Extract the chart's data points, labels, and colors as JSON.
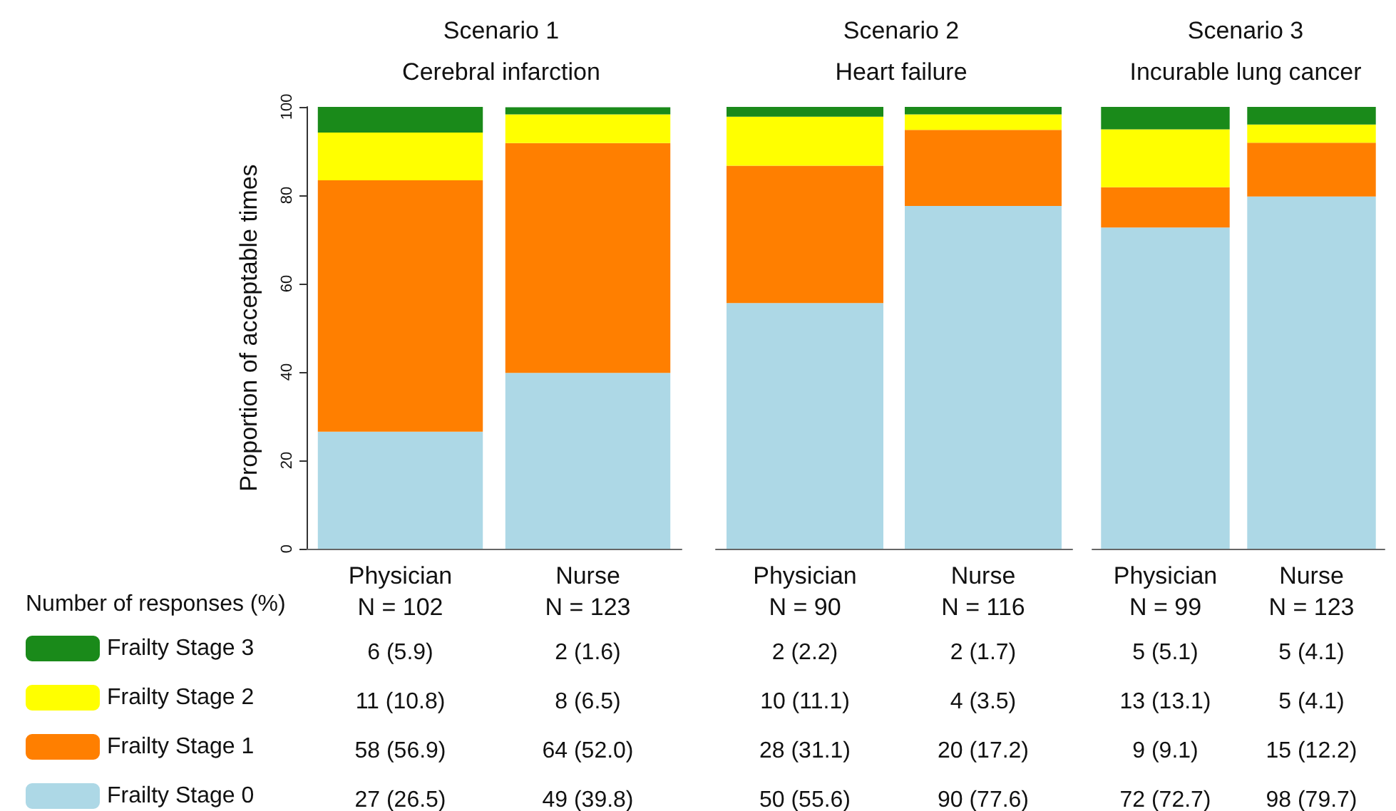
{
  "chart_data": [
    {
      "type": "bar",
      "title": "Scenario 1",
      "subtitle": "Cerebral infarction",
      "ylabel": "Proportion of acceptable times",
      "categories": [
        "Physician\nN = 102",
        "Nurse\nN = 123"
      ],
      "stacked": true,
      "ylim": [
        0,
        100
      ],
      "yticks": [
        0,
        20,
        40,
        60,
        80,
        100
      ],
      "grid": false,
      "legend": "bottom left",
      "annotations": [
        "Number of responses (%)"
      ],
      "series": [
        {
          "name": "Frailty Stage 0",
          "color": "#add8e6",
          "values": [
            26.5,
            39.8
          ],
          "value_labels": [
            "27 (26.5)",
            "49 (39.8)"
          ]
        },
        {
          "name": "Frailty Stage 1",
          "color": "#ff7f00",
          "values": [
            56.9,
            52.0
          ],
          "value_labels": [
            "58 (56.9)",
            "64 (52.0)"
          ]
        },
        {
          "name": "Frailty Stage 2",
          "color": "#ffff00",
          "values": [
            10.8,
            6.5
          ],
          "value_labels": [
            "11 (10.8)",
            "8 (6.5)"
          ]
        },
        {
          "name": "Frailty Stage 3",
          "color": "#1a8a1a",
          "values": [
            5.9,
            1.6
          ],
          "value_labels": [
            "6 (5.9)",
            "2 (1.6)"
          ]
        }
      ]
    },
    {
      "type": "bar",
      "title": "Scenario 2",
      "subtitle": "Heart failure",
      "categories": [
        "Physician\nN = 90",
        "Nurse\nN = 116"
      ],
      "stacked": true,
      "ylim": [
        0,
        100
      ],
      "tick_labels": "x",
      "grid": false,
      "series": [
        {
          "color": "#add8e6",
          "values": [
            55.6,
            77.6
          ],
          "value_labels": [
            "50 (55.6)",
            "90 (77.6)"
          ]
        },
        {
          "color": "#ff7f00",
          "values": [
            31.1,
            17.2
          ],
          "value_labels": [
            "28 (31.1)",
            "20 (17.2)"
          ]
        },
        {
          "color": "#ffff00",
          "values": [
            11.1,
            3.5
          ],
          "value_labels": [
            "10 (11.1)",
            "4 (3.5)"
          ]
        },
        {
          "color": "#1a8a1a",
          "values": [
            2.2,
            1.7
          ],
          "value_labels": [
            "2 (2.2)",
            "2 (1.7)"
          ]
        }
      ]
    },
    {
      "type": "bar",
      "title": "Scenario 3",
      "subtitle": "Incurable lung cancer",
      "categories": [
        "Physician\nN = 99",
        "Nurse\nN = 123"
      ],
      "stacked": true,
      "ylim": [
        0,
        100
      ],
      "tick_labels": "x",
      "grid": false,
      "series": [
        {
          "color": "#add8e6",
          "values": [
            72.7,
            79.7
          ],
          "value_labels": [
            "72 (72.7)",
            "98 (79.7)"
          ]
        },
        {
          "color": "#ff7f00",
          "values": [
            9.1,
            12.2
          ],
          "value_labels": [
            "9 (9.1)",
            "15 (12.2)"
          ]
        },
        {
          "color": "#ffff00",
          "values": [
            13.1,
            4.1
          ],
          "value_labels": [
            "13 (13.1)",
            "5 (4.1)"
          ]
        },
        {
          "color": "#1a8a1a",
          "values": [
            5.1,
            4.1
          ],
          "value_labels": [
            "5 (5.1)",
            "5 (4.1)"
          ]
        }
      ]
    }
  ]
}
